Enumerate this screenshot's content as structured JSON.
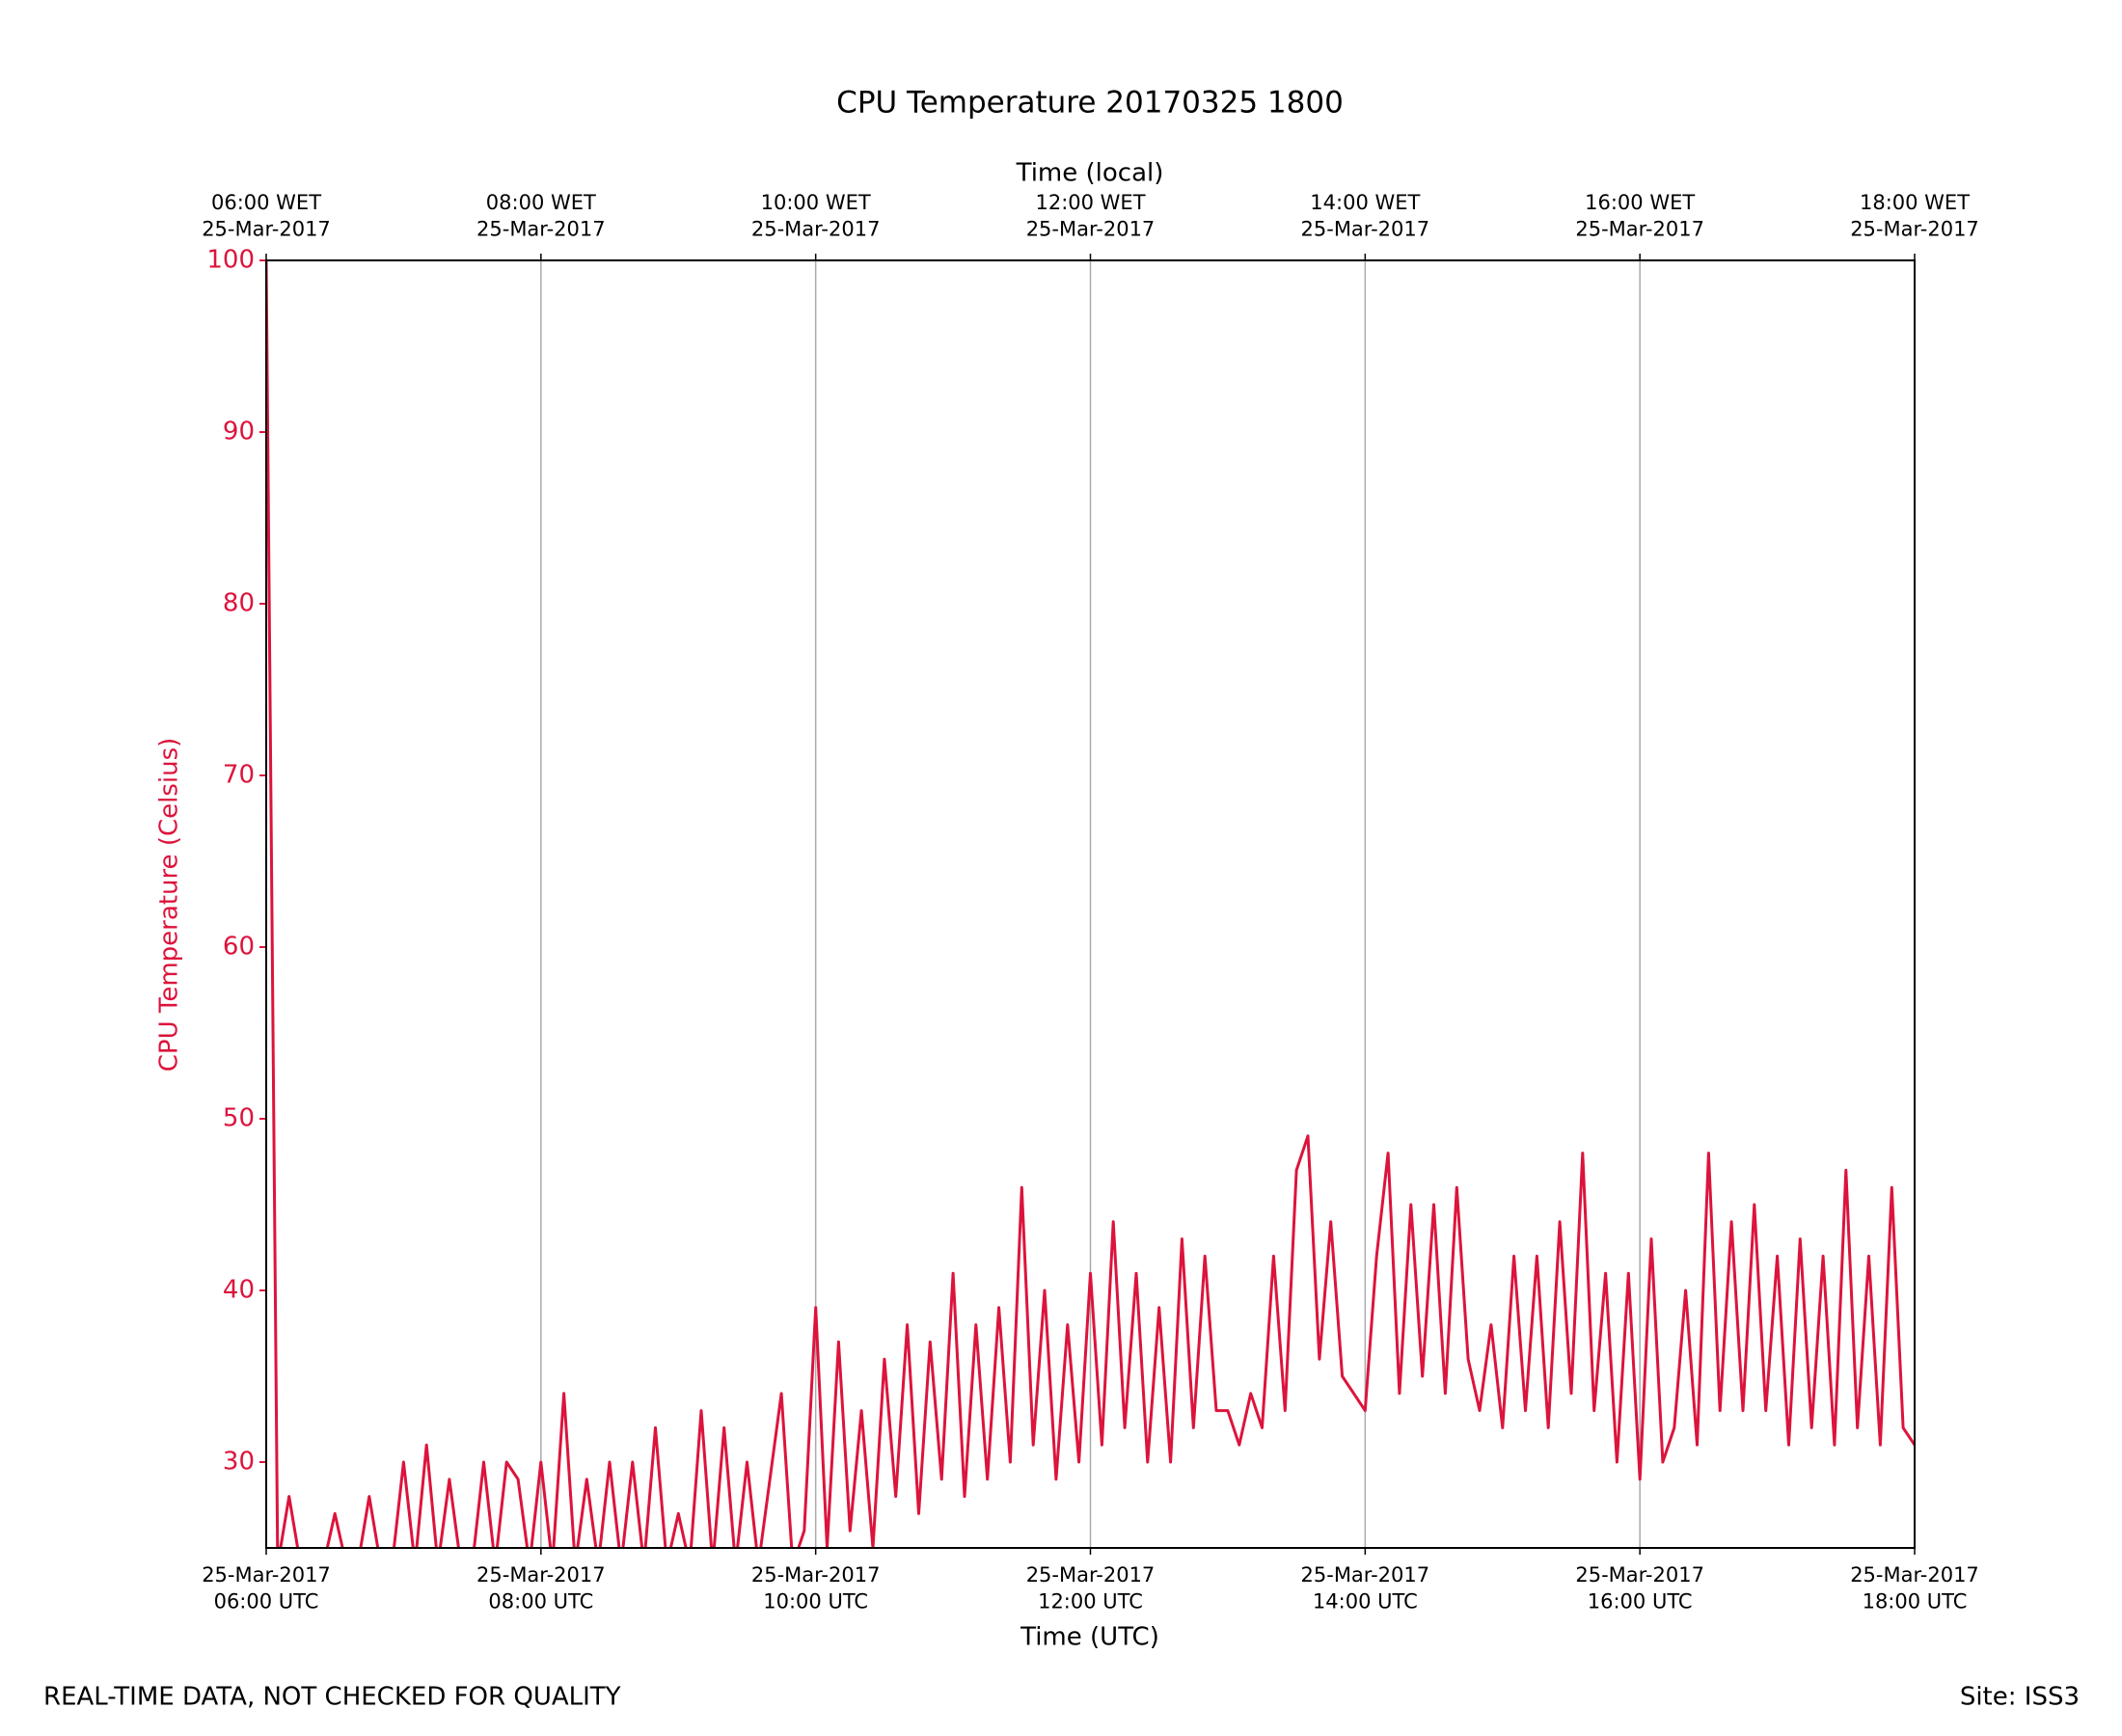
{
  "chart_data": {
    "type": "line",
    "title": "CPU Temperature 20170325 1800",
    "xlabel": "Time (UTC)",
    "x2label": "Time (local)",
    "ylabel": "CPU Temperature (Celsius)",
    "footer_left": "REAL-TIME DATA, NOT CHECKED FOR QUALITY",
    "footer_right": "Site: ISS3",
    "color": "#dc143c",
    "grid": "x",
    "xlim": [
      "2017-03-25 06:00",
      "2017-03-25 18:00"
    ],
    "ylim": [
      25,
      100
    ],
    "yticks": [
      30,
      40,
      50,
      60,
      70,
      80,
      90,
      100
    ],
    "xticks": [
      {
        "value": "2017-03-25 06:00",
        "label": "25-Mar-2017\n06:00 UTC"
      },
      {
        "value": "2017-03-25 08:00",
        "label": "25-Mar-2017\n08:00 UTC"
      },
      {
        "value": "2017-03-25 10:00",
        "label": "25-Mar-2017\n10:00 UTC"
      },
      {
        "value": "2017-03-25 12:00",
        "label": "25-Mar-2017\n12:00 UTC"
      },
      {
        "value": "2017-03-25 14:00",
        "label": "25-Mar-2017\n14:00 UTC"
      },
      {
        "value": "2017-03-25 16:00",
        "label": "25-Mar-2017\n16:00 UTC"
      },
      {
        "value": "2017-03-25 18:00",
        "label": "25-Mar-2017\n18:00 UTC"
      }
    ],
    "x2ticks": [
      {
        "value": "2017-03-25 06:00",
        "label": "06:00 WET\n25-Mar-2017"
      },
      {
        "value": "2017-03-25 08:00",
        "label": "08:00 WET\n25-Mar-2017"
      },
      {
        "value": "2017-03-25 10:00",
        "label": "10:00 WET\n25-Mar-2017"
      },
      {
        "value": "2017-03-25 12:00",
        "label": "12:00 WET\n25-Mar-2017"
      },
      {
        "value": "2017-03-25 14:00",
        "label": "14:00 WET\n25-Mar-2017"
      },
      {
        "value": "2017-03-25 16:00",
        "label": "16:00 WET\n25-Mar-2017"
      },
      {
        "value": "2017-03-25 18:00",
        "label": "18:00 WET\n25-Mar-2017"
      }
    ],
    "x": [
      "2017-03-25 06:00",
      "2017-03-25 06:05",
      "2017-03-25 06:10",
      "2017-03-25 06:15",
      "2017-03-25 06:20",
      "2017-03-25 06:25",
      "2017-03-25 06:30",
      "2017-03-25 06:35",
      "2017-03-25 06:40",
      "2017-03-25 06:45",
      "2017-03-25 06:50",
      "2017-03-25 06:55",
      "2017-03-25 07:00",
      "2017-03-25 07:05",
      "2017-03-25 07:10",
      "2017-03-25 07:15",
      "2017-03-25 07:20",
      "2017-03-25 07:25",
      "2017-03-25 07:30",
      "2017-03-25 07:35",
      "2017-03-25 07:40",
      "2017-03-25 07:45",
      "2017-03-25 07:50",
      "2017-03-25 07:55",
      "2017-03-25 08:00",
      "2017-03-25 08:05",
      "2017-03-25 08:10",
      "2017-03-25 08:15",
      "2017-03-25 08:20",
      "2017-03-25 08:25",
      "2017-03-25 08:30",
      "2017-03-25 08:35",
      "2017-03-25 08:40",
      "2017-03-25 08:45",
      "2017-03-25 08:50",
      "2017-03-25 08:55",
      "2017-03-25 09:00",
      "2017-03-25 09:05",
      "2017-03-25 09:10",
      "2017-03-25 09:15",
      "2017-03-25 09:20",
      "2017-03-25 09:25",
      "2017-03-25 09:30",
      "2017-03-25 09:35",
      "2017-03-25 09:40",
      "2017-03-25 09:45",
      "2017-03-25 09:50",
      "2017-03-25 09:55",
      "2017-03-25 10:00",
      "2017-03-25 10:05",
      "2017-03-25 10:10",
      "2017-03-25 10:15",
      "2017-03-25 10:20",
      "2017-03-25 10:25",
      "2017-03-25 10:30",
      "2017-03-25 10:35",
      "2017-03-25 10:40",
      "2017-03-25 10:45",
      "2017-03-25 10:50",
      "2017-03-25 10:55",
      "2017-03-25 11:00",
      "2017-03-25 11:05",
      "2017-03-25 11:10",
      "2017-03-25 11:15",
      "2017-03-25 11:20",
      "2017-03-25 11:25",
      "2017-03-25 11:30",
      "2017-03-25 11:35",
      "2017-03-25 11:40",
      "2017-03-25 11:45",
      "2017-03-25 11:50",
      "2017-03-25 11:55",
      "2017-03-25 12:00",
      "2017-03-25 12:05",
      "2017-03-25 12:10",
      "2017-03-25 12:15",
      "2017-03-25 12:20",
      "2017-03-25 12:25",
      "2017-03-25 12:30",
      "2017-03-25 12:35",
      "2017-03-25 12:40",
      "2017-03-25 12:45",
      "2017-03-25 12:50",
      "2017-03-25 12:55",
      "2017-03-25 13:00",
      "2017-03-25 13:05",
      "2017-03-25 13:10",
      "2017-03-25 13:15",
      "2017-03-25 13:20",
      "2017-03-25 13:25",
      "2017-03-25 13:30",
      "2017-03-25 13:35",
      "2017-03-25 13:40",
      "2017-03-25 13:45",
      "2017-03-25 13:50",
      "2017-03-25 13:55",
      "2017-03-25 14:00",
      "2017-03-25 14:05",
      "2017-03-25 14:10",
      "2017-03-25 14:15",
      "2017-03-25 14:20",
      "2017-03-25 14:25",
      "2017-03-25 14:30",
      "2017-03-25 14:35",
      "2017-03-25 14:40",
      "2017-03-25 14:45",
      "2017-03-25 14:50",
      "2017-03-25 14:55",
      "2017-03-25 15:00",
      "2017-03-25 15:05",
      "2017-03-25 15:10",
      "2017-03-25 15:15",
      "2017-03-25 15:20",
      "2017-03-25 15:25",
      "2017-03-25 15:30",
      "2017-03-25 15:35",
      "2017-03-25 15:40",
      "2017-03-25 15:45",
      "2017-03-25 15:50",
      "2017-03-25 15:55",
      "2017-03-25 16:00",
      "2017-03-25 16:05",
      "2017-03-25 16:10",
      "2017-03-25 16:15",
      "2017-03-25 16:20",
      "2017-03-25 16:25",
      "2017-03-25 16:30",
      "2017-03-25 16:35",
      "2017-03-25 16:40",
      "2017-03-25 16:45",
      "2017-03-25 16:50",
      "2017-03-25 16:55",
      "2017-03-25 17:00",
      "2017-03-25 17:05",
      "2017-03-25 17:10",
      "2017-03-25 17:15",
      "2017-03-25 17:20",
      "2017-03-25 17:25",
      "2017-03-25 17:30",
      "2017-03-25 17:35",
      "2017-03-25 17:40",
      "2017-03-25 17:45",
      "2017-03-25 17:50",
      "2017-03-25 17:55",
      "2017-03-25 18:00"
    ],
    "values": [
      100,
      24,
      28,
      24,
      24,
      24,
      27,
      24,
      24,
      28,
      24,
      24,
      30,
      24,
      31,
      24,
      29,
      24,
      24,
      30,
      24,
      30,
      29,
      24,
      30,
      24,
      34,
      24,
      29,
      24,
      30,
      24,
      30,
      24,
      32,
      24,
      27,
      24,
      33,
      24,
      32,
      24,
      30,
      24,
      29,
      34,
      24,
      26,
      39,
      25,
      37,
      26,
      33,
      25,
      36,
      28,
      38,
      27,
      37,
      29,
      41,
      28,
      38,
      29,
      39,
      30,
      46,
      31,
      40,
      29,
      38,
      30,
      41,
      31,
      44,
      32,
      41,
      30,
      39,
      30,
      43,
      32,
      42,
      33,
      33,
      31,
      34,
      32,
      42,
      33,
      47,
      49,
      36,
      44,
      35,
      34,
      33,
      42,
      48,
      34,
      45,
      35,
      45,
      34,
      46,
      36,
      33,
      38,
      32,
      42,
      33,
      42,
      32,
      44,
      34,
      48,
      33,
      41,
      30,
      41,
      29,
      43,
      30,
      32,
      40,
      31,
      48,
      33,
      44,
      33,
      45,
      33,
      42,
      31,
      43,
      32,
      42,
      31,
      47,
      32,
      42,
      31,
      46,
      32,
      31
    ]
  }
}
